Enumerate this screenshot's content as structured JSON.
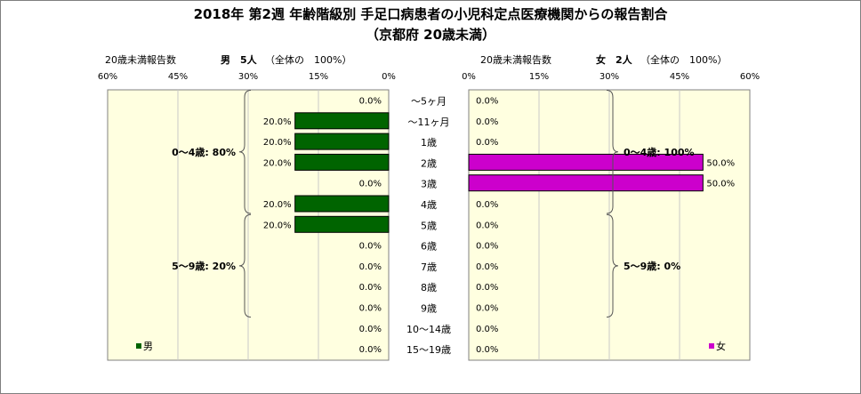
{
  "title_line1": "2018年 第2週 年齢階級別 手足口病患者の小児科定点医療機関からの報告割合",
  "title_line2": "（京都府 20歳未満）",
  "chart_data": {
    "type": "bar",
    "categories": [
      "～5ヶ月",
      "～11ヶ月",
      "1歳",
      "2歳",
      "3歳",
      "4歳",
      "5歳",
      "6歳",
      "7歳",
      "8歳",
      "9歳",
      "10～14歳",
      "15～19歳"
    ],
    "xlim": [
      0,
      60
    ],
    "ticks": [
      "60%",
      "45%",
      "30%",
      "15%",
      "0%"
    ],
    "ticks_right": [
      "0%",
      "15%",
      "30%",
      "45%",
      "60%"
    ],
    "grid": true,
    "series": [
      {
        "name": "男",
        "side": "left",
        "color": "#006400",
        "header_label": "20歳未満報告数",
        "header_count": "男　5人",
        "header_total": "（全体の　100%）",
        "values": [
          0,
          20,
          20,
          20,
          0,
          20,
          20,
          0,
          0,
          0,
          0,
          0,
          0
        ],
        "value_labels": [
          "0.0%",
          "20.0%",
          "20.0%",
          "20.0%",
          "0.0%",
          "20.0%",
          "20.0%",
          "0.0%",
          "0.0%",
          "0.0%",
          "0.0%",
          "0.0%",
          "0.0%"
        ],
        "groups": [
          {
            "label": "0～4歳: 80%",
            "from": 0,
            "to": 5
          },
          {
            "label": "5～9歳: 20%",
            "from": 6,
            "to": 10
          }
        ]
      },
      {
        "name": "女",
        "side": "right",
        "color": "#CC00CC",
        "header_label": "20歳未満報告数",
        "header_count": "女　2人",
        "header_total": "（全体の　100%）",
        "values": [
          0,
          0,
          0,
          50,
          50,
          0,
          0,
          0,
          0,
          0,
          0,
          0,
          0
        ],
        "value_labels": [
          "0.0%",
          "0.0%",
          "0.0%",
          "50.0%",
          "50.0%",
          "0.0%",
          "0.0%",
          "0.0%",
          "0.0%",
          "0.0%",
          "0.0%",
          "0.0%",
          "0.0%"
        ],
        "groups": [
          {
            "label": "0～4歳: 100%",
            "from": 0,
            "to": 5
          },
          {
            "label": "5～9歳: 0%",
            "from": 6,
            "to": 10
          }
        ]
      }
    ]
  }
}
